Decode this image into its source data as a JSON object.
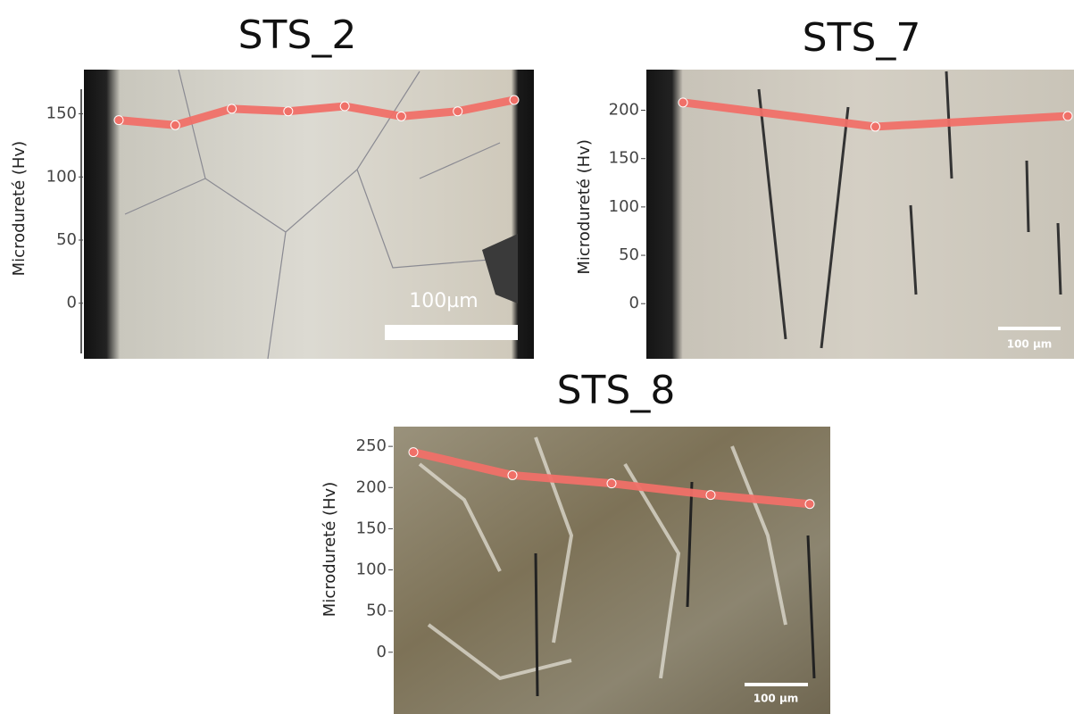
{
  "chart_data": [
    {
      "type": "line",
      "title": "STS_2",
      "ylabel": "Microdureté (Hv)",
      "annotation": "100µm",
      "categories": [
        null,
        null,
        null,
        null,
        null,
        null,
        null,
        null
      ],
      "values": [
        145,
        141,
        154,
        152,
        156,
        148,
        152,
        161
      ],
      "color": "#f07068",
      "ylim": [
        -44,
        185
      ],
      "yticks": [
        0,
        50,
        100,
        150
      ]
    },
    {
      "type": "line",
      "title": "STS_7",
      "ylabel": "Microdureté (Hv)",
      "annotation": "100 µm",
      "categories": [
        null,
        null,
        null
      ],
      "values": [
        208,
        183,
        194
      ],
      "color": "#f07068",
      "ylim": [
        -57,
        242
      ],
      "yticks": [
        0,
        50,
        100,
        150,
        200
      ]
    },
    {
      "type": "line",
      "title": "STS_8",
      "ylabel": "Microdureté (Hv)",
      "annotation": "100 µm",
      "categories": [
        null,
        null,
        null,
        null,
        null
      ],
      "values": [
        243,
        215,
        205,
        191,
        180
      ],
      "color": "#f07068",
      "ylim": [
        -75,
        274
      ],
      "yticks": [
        0,
        50,
        100,
        150,
        200,
        250
      ]
    }
  ]
}
